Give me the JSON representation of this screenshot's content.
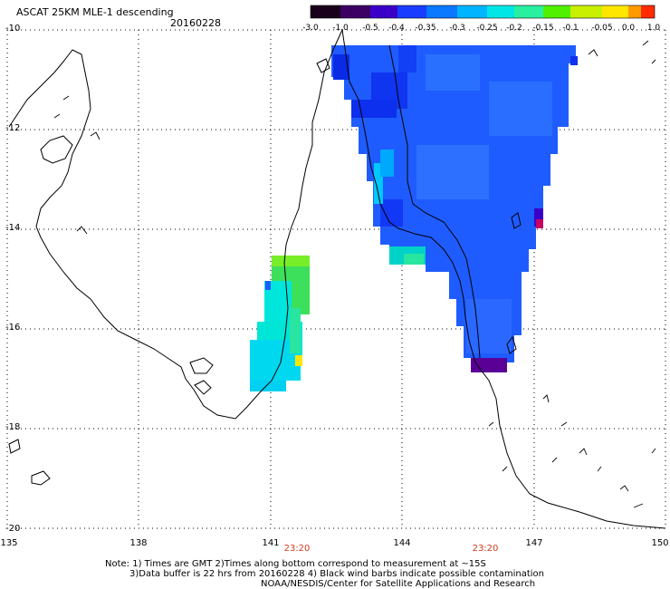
{
  "header": {
    "title": "ASCAT 25KM MLE-1 descending",
    "date": "20160228"
  },
  "colorbar": {
    "ticks": [
      "-3.0",
      "-1.0",
      "-0.5",
      "-0.4",
      "-0.35",
      "-0.3",
      "-0.25",
      "-0.2",
      "-0.15",
      "-0.1",
      "-0.05",
      "0.0",
      "1.0"
    ],
    "colors": [
      "#1a001a",
      "#3c0064",
      "#3a00c8",
      "#1a3cff",
      "#0a78ff",
      "#00b4ff",
      "#00e6e6",
      "#28f0a0",
      "#50f000",
      "#a0f000",
      "#ffe600",
      "#ff8c00",
      "#ff2000"
    ]
  },
  "axes": {
    "lat_labels": [
      "-10",
      "-12",
      "-14",
      "-16",
      "-18",
      "-20"
    ],
    "lon_labels": [
      "135",
      "138",
      "141",
      "144",
      "147",
      "150"
    ],
    "lat_range": [
      -20,
      -10
    ],
    "lon_range": [
      135,
      150
    ]
  },
  "times": [
    "23:20",
    "23:20"
  ],
  "notes": [
    "Note: 1) Times are GMT 2)Times along bottom correspond to measurement at ~15S",
    "3)Data buffer is 22 hrs from 20160228 4) Black wind barbs indicate possible contamination",
    "NOAA/NESDIS/Center for Satellite Applications and Research"
  ]
}
